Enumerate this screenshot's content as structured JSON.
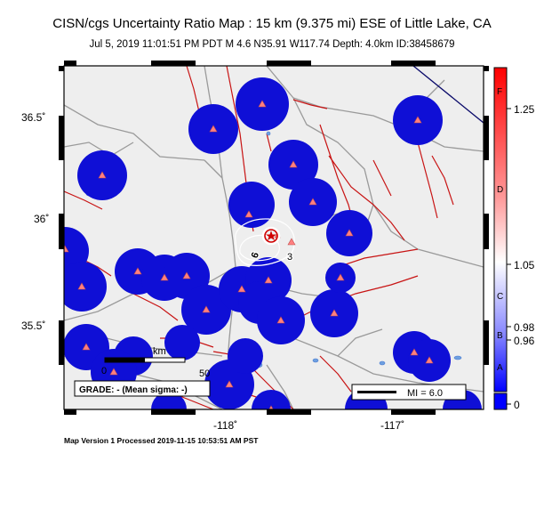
{
  "title": "CISN/cgs Uncertainty Ratio Map : 15 km (9.375 mi) ESE of Little Lake, CA",
  "subtitle": "Jul  5, 2019 11:01:51 PM PDT   M 4.6   N35.91 W117.74   Depth: 4.0km   ID:38458679",
  "footer": "Map Version 1 Processed 2019-11-15 10:53:51 AM PST",
  "axes": {
    "lon_ticks": [
      "-118˚",
      "-117˚"
    ],
    "lat_ticks": [
      "36.5˚",
      "36˚",
      "35.5˚"
    ]
  },
  "scale": {
    "unit": "km",
    "start": "0",
    "end": "50"
  },
  "grade_label": "GRADE: - (Mean sigma: -)",
  "mi_legend": "MI = 6.0",
  "contour_labels": [
    "6",
    "3"
  ],
  "colorbar": {
    "values": [
      "1.25",
      "1.05",
      "0.98",
      "0.96",
      "0"
    ],
    "letters": [
      "F",
      "D",
      "C",
      "B",
      "A"
    ]
  },
  "colors": {
    "uncertainty_blue": "#0a0ad8",
    "land": "#eeeeee",
    "water": "#6ea0e0",
    "faults": "#c81414",
    "roads": "#9a9a9a",
    "station": "#ff8080",
    "epicenter_ring": "#d00000"
  }
}
